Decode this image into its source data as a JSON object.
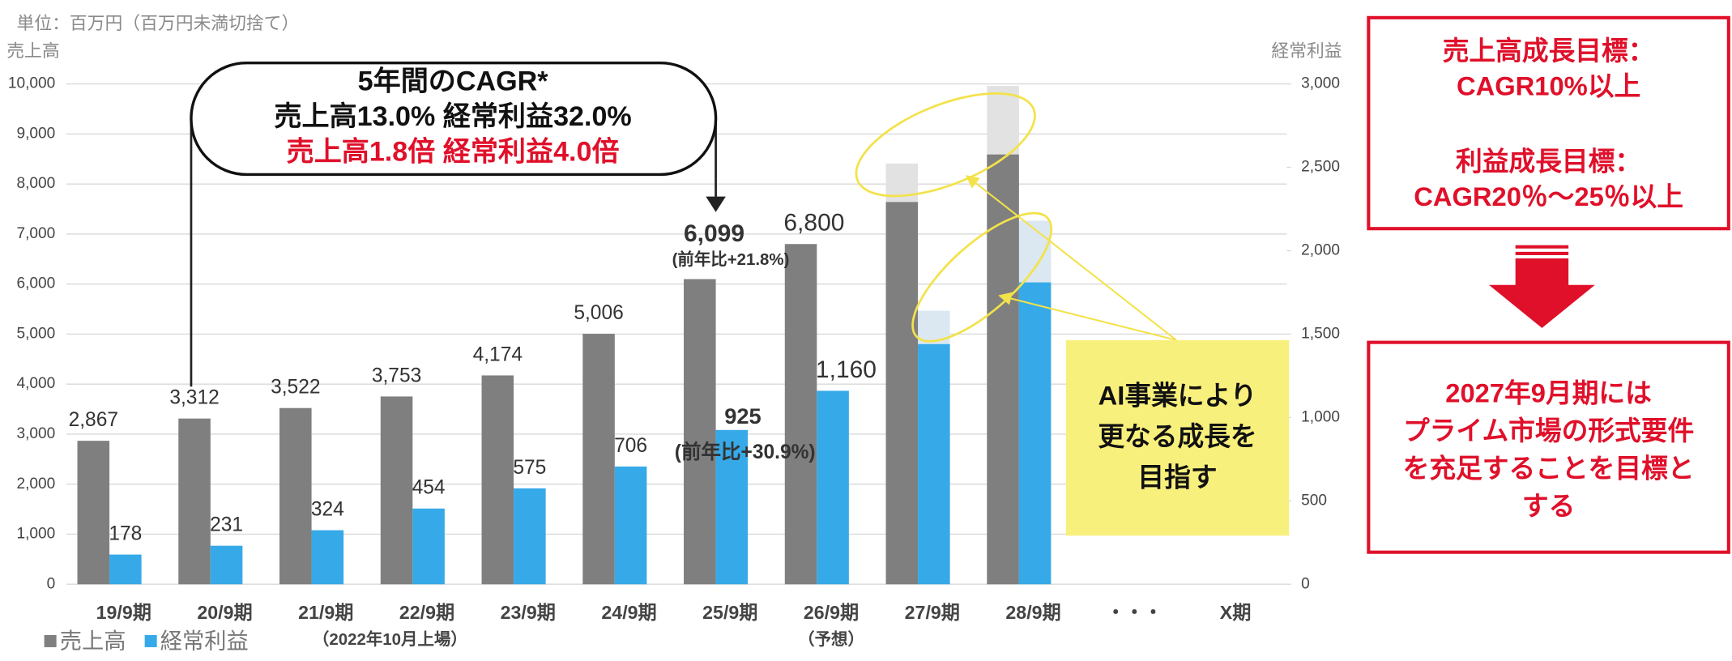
{
  "header": {
    "unit": "単位：百万円（百万円未満切捨て）"
  },
  "chart_data": {
    "type": "bar",
    "y_axis_label": "売上高",
    "y2_axis_label": "経常利益",
    "categories": [
      "19/9期",
      "20/9期",
      "21/9期",
      "22/9期",
      "23/9期",
      "24/9期",
      "25/9期",
      "26/9期",
      "27/9期",
      "28/9期",
      "・・・",
      "X期"
    ],
    "sublabels": [
      null,
      null,
      "（2022年10月上場）",
      null,
      null,
      null,
      null,
      "（予想）",
      null,
      null,
      null,
      null
    ],
    "ylim": [
      0,
      10000
    ],
    "yticks": [
      0,
      {
        "value": 1000,
        "label": "1,000"
      },
      {
        "value": 2000,
        "label": "2,000"
      },
      {
        "value": 3000,
        "label": "3,000"
      },
      {
        "value": 4000,
        "label": "4,000"
      },
      {
        "value": 5000,
        "label": "5,000"
      },
      {
        "value": 6000,
        "label": "6,000"
      },
      {
        "value": 7000,
        "label": "7,000"
      },
      {
        "value": 8000,
        "label": "8,000"
      },
      {
        "value": 9000,
        "label": "9,000"
      },
      {
        "value": 10000,
        "label": "10,000"
      }
    ],
    "y2lim": [
      0,
      3000
    ],
    "y2ticks": [
      0,
      500,
      {
        "value": 1000,
        "label": "1,000"
      },
      {
        "value": 1500,
        "label": "1,500"
      },
      {
        "value": 2000,
        "label": "2,000"
      },
      {
        "value": 2500,
        "label": "2,500"
      },
      {
        "value": 3000,
        "label": "3,000"
      }
    ],
    "grid": true,
    "legend": "bottom-left",
    "series": [
      {
        "name": "売上高",
        "color": "#7f7f7f",
        "values": [
          2867,
          3312,
          3522,
          3753,
          4174,
          5006,
          6099,
          6800,
          7640,
          8590,
          null,
          null
        ],
        "value_labels": [
          "2,867",
          "3,312",
          "3,522",
          "3,753",
          "4,174",
          "5,006",
          "6,099",
          "6,800",
          null,
          null,
          null,
          null
        ]
      },
      {
        "name": "経常利益",
        "color": "#36a9e8",
        "axis": "y2",
        "values": [
          178,
          231,
          324,
          454,
          575,
          706,
          925,
          1160,
          1440,
          1810,
          null,
          null
        ],
        "value_labels": [
          "178",
          "231",
          "324",
          "454",
          "575",
          "706",
          "925",
          "1,160",
          null,
          null,
          null,
          null
        ]
      },
      {
        "color": "#e2e2e2",
        "values": [
          null,
          null,
          null,
          null,
          null,
          null,
          null,
          null,
          8410,
          9960,
          null,
          null
        ]
      },
      {
        "color": "#dbe8f1",
        "axis": "y2",
        "values": [
          null,
          null,
          null,
          null,
          null,
          null,
          null,
          null,
          1640,
          2180,
          null,
          null
        ]
      }
    ],
    "annotations": {
      "sales_note": "(前年比+21.8%)",
      "profit_note": "(前年比+30.9%)",
      "callout": [
        "5年間のCAGR*",
        "売上高13.0% 経常利益32.0%",
        "売上高1.8倍 経常利益4.0倍"
      ],
      "ai_box": [
        "AI事業により",
        "更なる成長を",
        "目指す"
      ]
    }
  },
  "targets": {
    "goals": [
      "売上高成長目標：",
      "CAGR10%以上",
      "利益成長目標：",
      "CAGR20％～25％以上"
    ],
    "plan": [
      "2027年9月期には",
      "プライム市場の形式要件",
      "を充足することを目標と",
      "する"
    ]
  }
}
